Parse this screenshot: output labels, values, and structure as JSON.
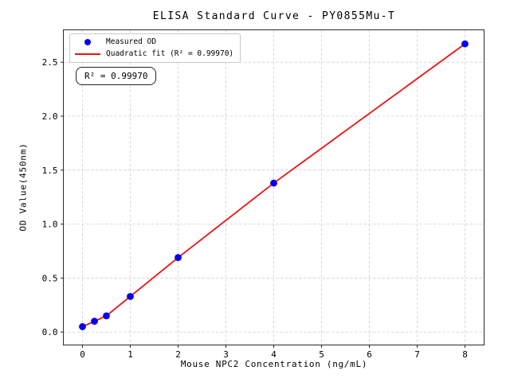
{
  "title": "ELISA Standard Curve - PY0855Mu-T",
  "annotation": {
    "text": "R² = 0.99970"
  },
  "legend": {
    "items": [
      {
        "label": "Measured OD",
        "marker": "blue-dot-marker"
      },
      {
        "label": "Quadratic fit (R² = 0.99970)",
        "marker": "red-line-marker"
      }
    ]
  },
  "axes": {
    "xlabel": "Mouse NPC2 Concentration (ng/mL)",
    "ylabel": "OD Value(450nm)"
  },
  "colors": {
    "measured_points": "#0000ee",
    "fit_line": "#ee1111",
    "grid": "#d0d0d0",
    "spine": "#2a2a2a",
    "text": "#000000",
    "legend_border": "#c9c9c9"
  },
  "chart_data": {
    "type": "scatter",
    "title": "ELISA Standard Curve - PY0855Mu-T",
    "xlabel": "Mouse NPC2 Concentration (ng/mL)",
    "ylabel": "OD Value(450nm)",
    "xlim": [
      -0.4,
      8.4
    ],
    "ylim": [
      -0.12,
      2.8
    ],
    "grid": true,
    "grid_style": "dashed",
    "legend_position": "upper left",
    "x_ticks": [
      0,
      1,
      2,
      3,
      4,
      5,
      6,
      7,
      8
    ],
    "x_tick_labels": [
      "0",
      "1",
      "2",
      "3",
      "4",
      "5",
      "6",
      "7",
      "8"
    ],
    "y_ticks": [
      0,
      0.5,
      1.0,
      1.5,
      2.0,
      2.5
    ],
    "y_tick_labels": [
      "0.0",
      "0.5",
      "1.0",
      "1.5",
      "2.0",
      "2.5"
    ],
    "r_squared": "0.99970",
    "series": [
      {
        "name": "Measured OD",
        "type": "scatter",
        "color": "#0000ee",
        "x": [
          0,
          0.25,
          0.5,
          1,
          2,
          4,
          8
        ],
        "y": [
          0.05,
          0.1,
          0.15,
          0.33,
          0.69,
          1.38,
          2.67
        ]
      },
      {
        "name": "Quadratic fit (R² = 0.99970)",
        "type": "line",
        "color": "#ee1111",
        "x": [
          0,
          0.25,
          0.5,
          1,
          2,
          4,
          8
        ],
        "y": [
          0.05,
          0.1,
          0.15,
          0.33,
          0.69,
          1.38,
          2.67
        ]
      }
    ]
  }
}
